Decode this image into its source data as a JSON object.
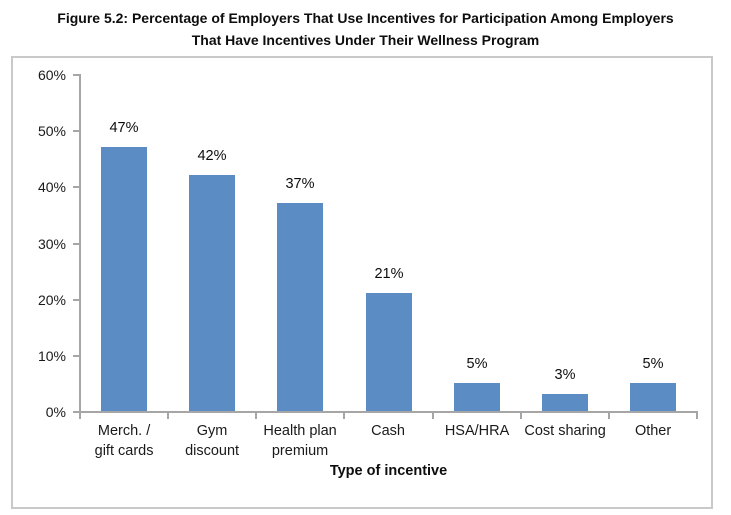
{
  "title": {
    "line1": "Figure 5.2: Percentage of Employers That Use Incentives for Participation Among Employers",
    "line2": "That Have Incentives Under Their Wellness Program"
  },
  "chart_data": {
    "type": "bar",
    "title": "Figure 5.2: Percentage of Employers That Use Incentives for Participation Among Employers That Have Incentives Under Their Wellness Program",
    "categories": [
      "Merch. /\ngift cards",
      "Gym\ndiscount",
      "Health plan\npremium",
      "Cash",
      "HSA/HRA",
      "Cost sharing",
      "Other"
    ],
    "values": [
      47,
      42,
      37,
      21,
      5,
      3,
      5
    ],
    "value_labels": [
      "47%",
      "42%",
      "37%",
      "21%",
      "5%",
      "3%",
      "5%"
    ],
    "xlabel": "Type of incentive",
    "ylabel": "",
    "ylim": [
      0,
      60
    ],
    "y_ticks": [
      "0%",
      "10%",
      "20%",
      "30%",
      "40%",
      "50%",
      "60%"
    ],
    "y_tick_values": [
      0,
      10,
      20,
      30,
      40,
      50,
      60
    ],
    "grid": false,
    "legend": false,
    "bar_color": "#5b8dc4",
    "axis_color": "#a6a6a6",
    "border_color": "#c9c9c9"
  }
}
